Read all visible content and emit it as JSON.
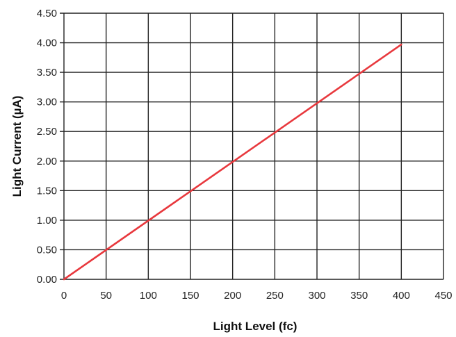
{
  "chart_data": {
    "type": "line",
    "title": "",
    "xlabel": "Light Level (fc)",
    "ylabel": "Light Current (µA)",
    "xlim": [
      0,
      450
    ],
    "ylim": [
      0,
      4.5
    ],
    "x_ticks": [
      "0",
      "50",
      "100",
      "150",
      "200",
      "250",
      "300",
      "350",
      "400",
      "450"
    ],
    "y_ticks": [
      "0.00",
      "0.50",
      "1.00",
      "1.50",
      "2.00",
      "2.50",
      "3.00",
      "3.50",
      "4.00",
      "4.50"
    ],
    "grid": true,
    "legend": "none",
    "series": [
      {
        "x": [
          0,
          400
        ],
        "y": [
          0,
          3.97
        ],
        "color": "#e8383d"
      }
    ],
    "colors": {
      "grid": "#222222",
      "line": "#e8383d"
    }
  }
}
